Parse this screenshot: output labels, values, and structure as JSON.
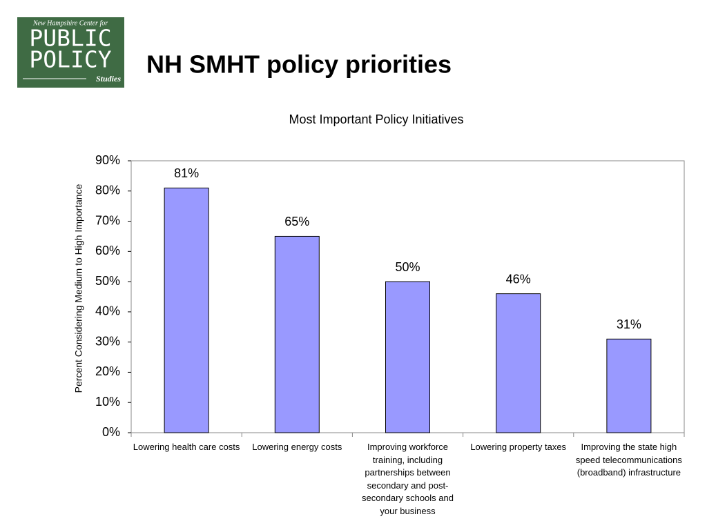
{
  "logo": {
    "line1": "New Hampshire Center for",
    "line2": "PUBLIC",
    "line3": "POLICY",
    "line4": "Studies"
  },
  "slide_title": "NH SMHT policy priorities",
  "chart_data": {
    "type": "bar",
    "title": "Most Important Policy Initiatives",
    "y_label": "Percent Considering Medium to High Importance",
    "categories": [
      "Lowering health care costs",
      "Lowering energy costs",
      "Improving workforce training, including partnerships between secondary and post-secondary schools and your business",
      "Lowering property taxes",
      "Improving the state high speed telecommunications (broadband) infrastructure"
    ],
    "values": [
      81,
      65,
      50,
      46,
      31
    ],
    "value_labels": [
      "81%",
      "65%",
      "50%",
      "46%",
      "31%"
    ],
    "color": "#9999ff",
    "ylim": [
      0,
      90
    ],
    "yticks": [
      {
        "value": 0,
        "label": "0%"
      },
      {
        "value": 10,
        "label": "10%"
      },
      {
        "value": 20,
        "label": "20%"
      },
      {
        "value": 30,
        "label": "30%"
      },
      {
        "value": 40,
        "label": "40%"
      },
      {
        "value": 50,
        "label": "50%"
      },
      {
        "value": 60,
        "label": "60%"
      },
      {
        "value": 70,
        "label": "70%"
      },
      {
        "value": 80,
        "label": "80%"
      },
      {
        "value": 90,
        "label": "90%"
      }
    ],
    "grid": false
  }
}
